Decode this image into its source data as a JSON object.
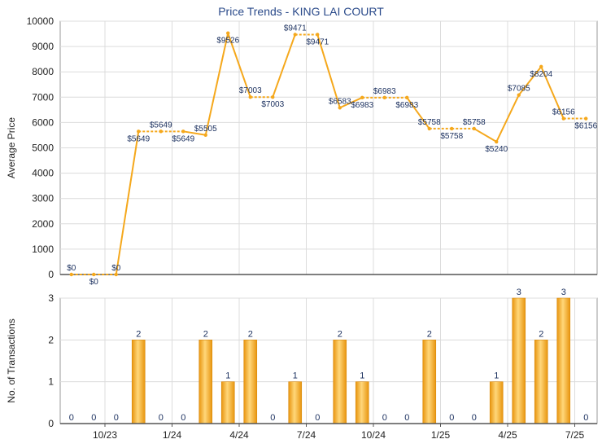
{
  "chart_data": [
    {
      "type": "line",
      "title": "Price Trends - KING LAI COURT",
      "ylabel": "Average Price",
      "ylim": [
        0,
        10000
      ],
      "yticks": [
        0,
        1000,
        2000,
        3000,
        4000,
        5000,
        6000,
        7000,
        8000,
        9000,
        10000
      ],
      "grid": true,
      "x_tick_labels": [
        "10/23",
        "1/24",
        "4/24",
        "7/24",
        "10/24",
        "1/25",
        "4/25",
        "7/25"
      ],
      "values": [
        0,
        0,
        0,
        5649,
        5649,
        5649,
        5505,
        9526,
        7003,
        7003,
        9471,
        9471,
        6583,
        6983,
        6983,
        6983,
        5758,
        5758,
        5758,
        5240,
        7085,
        8204,
        6156,
        6156
      ],
      "value_labels": [
        "$0",
        "$0",
        "$0",
        "$5649",
        "$5649",
        "$5649",
        "$5505",
        "$9526",
        "$7003",
        "$7003",
        "$9471",
        "$9471",
        "$6583",
        "$6983",
        "$6983",
        "$6983",
        "$5758",
        "$5758",
        "$5758",
        "$5240",
        "$7085",
        "$8204",
        "$6156",
        "$6156"
      ],
      "color": "#f5a81c"
    },
    {
      "type": "bar",
      "ylabel": "No. of Transactions",
      "ylim": [
        0,
        3
      ],
      "yticks": [
        0,
        1,
        2,
        3
      ],
      "grid": true,
      "x_tick_labels": [
        "10/23",
        "1/24",
        "4/24",
        "7/24",
        "10/24",
        "1/25",
        "4/25",
        "7/25"
      ],
      "values": [
        0,
        0,
        0,
        2,
        0,
        0,
        2,
        1,
        2,
        0,
        1,
        0,
        2,
        1,
        0,
        0,
        2,
        0,
        0,
        1,
        3,
        2,
        3,
        0
      ],
      "color": "#f5a81c"
    }
  ]
}
